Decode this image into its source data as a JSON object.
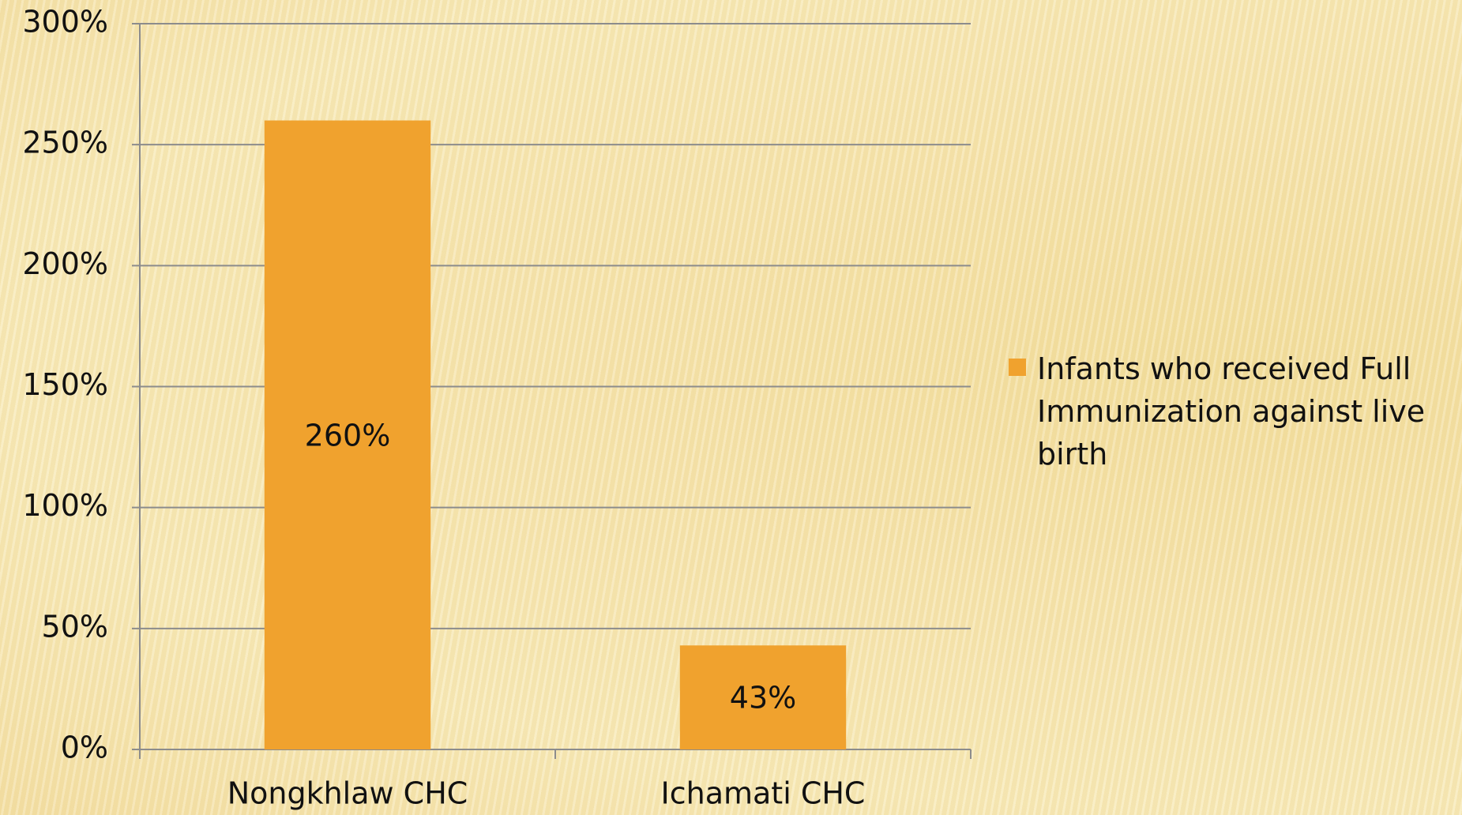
{
  "chart_data": {
    "type": "bar",
    "categories": [
      "Nongkhlaw CHC",
      "Ichamati CHC"
    ],
    "series": [
      {
        "name": "Infants who received Full Immunization against live birth",
        "color": "#f0a22e",
        "values": [
          260,
          43
        ],
        "value_labels": [
          "260%",
          "43%"
        ]
      }
    ],
    "ylim": [
      0,
      300
    ],
    "yticks": [
      {
        "value": 0,
        "label": "0%"
      },
      {
        "value": 50,
        "label": "50%"
      },
      {
        "value": 100,
        "label": "100%"
      },
      {
        "value": 150,
        "label": "150%"
      },
      {
        "value": 200,
        "label": "200%"
      },
      {
        "value": 250,
        "label": "250%"
      },
      {
        "value": 300,
        "label": "300%"
      }
    ],
    "grid": true,
    "legend": "right"
  }
}
